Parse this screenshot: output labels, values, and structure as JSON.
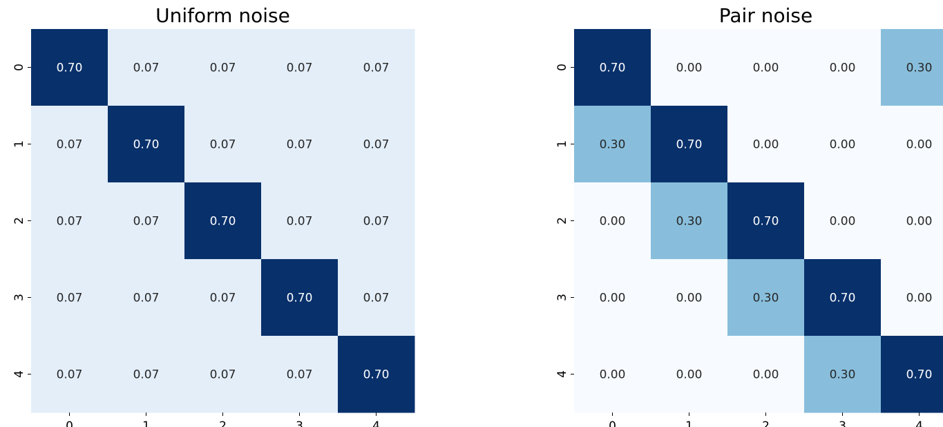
{
  "chart_data": [
    {
      "type": "heatmap",
      "title": "Uniform noise",
      "xlabel": "",
      "ylabel": "",
      "x_ticks": [
        "0",
        "1",
        "2",
        "3",
        "4"
      ],
      "y_ticks": [
        "0",
        "1",
        "2",
        "3",
        "4"
      ],
      "colormap": "Blues",
      "vmin": 0.0,
      "vmax": 0.7,
      "colorbar": false,
      "values": [
        [
          0.7,
          0.07,
          0.07,
          0.07,
          0.07
        ],
        [
          0.07,
          0.7,
          0.07,
          0.07,
          0.07
        ],
        [
          0.07,
          0.07,
          0.7,
          0.07,
          0.07
        ],
        [
          0.07,
          0.07,
          0.07,
          0.7,
          0.07
        ],
        [
          0.07,
          0.07,
          0.07,
          0.07,
          0.7
        ]
      ],
      "cell_labels": [
        [
          "0.70",
          "0.07",
          "0.07",
          "0.07",
          "0.07"
        ],
        [
          "0.07",
          "0.70",
          "0.07",
          "0.07",
          "0.07"
        ],
        [
          "0.07",
          "0.07",
          "0.70",
          "0.07",
          "0.07"
        ],
        [
          "0.07",
          "0.07",
          "0.07",
          "0.70",
          "0.07"
        ],
        [
          "0.07",
          "0.07",
          "0.07",
          "0.07",
          "0.70"
        ]
      ]
    },
    {
      "type": "heatmap",
      "title": "Pair noise",
      "xlabel": "",
      "ylabel": "",
      "x_ticks": [
        "0",
        "1",
        "2",
        "3",
        "4"
      ],
      "y_ticks": [
        "0",
        "1",
        "2",
        "3",
        "4"
      ],
      "colormap": "Blues",
      "vmin": 0.0,
      "vmax": 0.7,
      "colorbar": false,
      "values": [
        [
          0.7,
          0.0,
          0.0,
          0.0,
          0.3
        ],
        [
          0.3,
          0.7,
          0.0,
          0.0,
          0.0
        ],
        [
          0.0,
          0.3,
          0.7,
          0.0,
          0.0
        ],
        [
          0.0,
          0.0,
          0.3,
          0.7,
          0.0
        ],
        [
          0.0,
          0.0,
          0.0,
          0.3,
          0.7
        ]
      ],
      "cell_labels": [
        [
          "0.70",
          "0.00",
          "0.00",
          "0.00",
          "0.30"
        ],
        [
          "0.30",
          "0.70",
          "0.00",
          "0.00",
          "0.00"
        ],
        [
          "0.00",
          "0.30",
          "0.70",
          "0.00",
          "0.00"
        ],
        [
          "0.00",
          "0.00",
          "0.30",
          "0.70",
          "0.00"
        ],
        [
          "0.00",
          "0.00",
          "0.00",
          "0.30",
          "0.70"
        ]
      ]
    }
  ],
  "colors": {
    "high": "#08306b",
    "mid": "#89bedc",
    "low": "#f7fbff",
    "text_dark": "#262626",
    "text_light": "#ffffff"
  }
}
